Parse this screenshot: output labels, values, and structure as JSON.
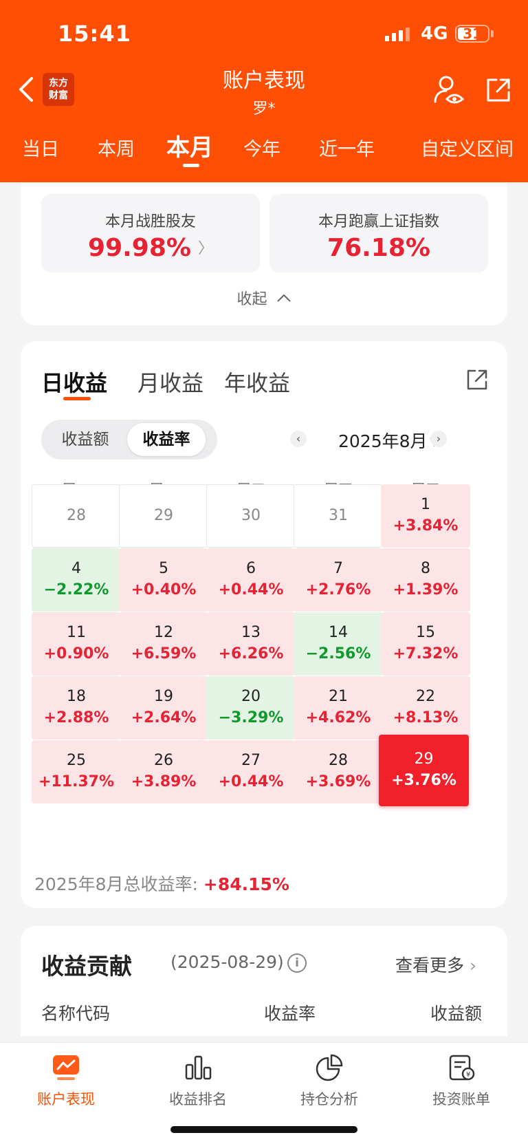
{
  "status_bar": {
    "time": "15:41",
    "network": "4G",
    "battery": "31"
  },
  "header": {
    "logo_line1": "东方",
    "logo_line2": "财富",
    "title": "账户表现",
    "subtitle": "罗*"
  },
  "period_tabs": [
    "当日",
    "本周",
    "本月",
    "今年",
    "近一年",
    "自定义区间"
  ],
  "active_period": "本月",
  "summary": {
    "beat_peers_label": "本月战胜股友",
    "beat_peers_value": "99.98%",
    "beat_index_label": "本月跑赢上证指数",
    "beat_index_value": "76.18%",
    "collapse_label": "收起"
  },
  "returns": {
    "tabs": [
      "日收益",
      "月收益",
      "年收益"
    ],
    "toggle": {
      "amount": "收益额",
      "rate": "收益率"
    },
    "month_label": "2025年8月",
    "weekdays": [
      "周一",
      "周二",
      "周三",
      "周四",
      "周五"
    ],
    "days": [
      {
        "day": "28",
        "pct": "",
        "type": "empty"
      },
      {
        "day": "29",
        "pct": "",
        "type": "empty"
      },
      {
        "day": "30",
        "pct": "",
        "type": "empty"
      },
      {
        "day": "31",
        "pct": "",
        "type": "empty"
      },
      {
        "day": "1",
        "pct": "+3.84%",
        "type": "up"
      },
      {
        "day": "4",
        "pct": "−2.22%",
        "type": "down"
      },
      {
        "day": "5",
        "pct": "+0.40%",
        "type": "up"
      },
      {
        "day": "6",
        "pct": "+0.44%",
        "type": "up"
      },
      {
        "day": "7",
        "pct": "+2.76%",
        "type": "up"
      },
      {
        "day": "8",
        "pct": "+1.39%",
        "type": "up"
      },
      {
        "day": "11",
        "pct": "+0.90%",
        "type": "up"
      },
      {
        "day": "12",
        "pct": "+6.59%",
        "type": "up"
      },
      {
        "day": "13",
        "pct": "+6.26%",
        "type": "up"
      },
      {
        "day": "14",
        "pct": "−2.56%",
        "type": "down"
      },
      {
        "day": "15",
        "pct": "+7.32%",
        "type": "up"
      },
      {
        "day": "18",
        "pct": "+2.88%",
        "type": "up"
      },
      {
        "day": "19",
        "pct": "+2.64%",
        "type": "up"
      },
      {
        "day": "20",
        "pct": "−3.29%",
        "type": "down"
      },
      {
        "day": "21",
        "pct": "+4.62%",
        "type": "up"
      },
      {
        "day": "22",
        "pct": "+8.13%",
        "type": "up"
      },
      {
        "day": "25",
        "pct": "+11.37%",
        "type": "up"
      },
      {
        "day": "26",
        "pct": "+3.89%",
        "type": "up"
      },
      {
        "day": "27",
        "pct": "+0.44%",
        "type": "up"
      },
      {
        "day": "28",
        "pct": "+3.69%",
        "type": "up"
      },
      {
        "day": "29",
        "pct": "+3.76%",
        "type": "sel"
      }
    ],
    "total_label": "2025年8月总收益率:",
    "total_value": "+84.15%"
  },
  "contribution": {
    "title": "收益贡献",
    "date": "(2025-08-29)",
    "more": "查看更多",
    "col_name": "名称代码",
    "col_rate": "收益率",
    "col_amount": "收益额"
  },
  "tabbar": [
    "账户表现",
    "收益排名",
    "持仓分析",
    "投资账单"
  ],
  "colors": {
    "brand": "#ff4f05",
    "up": "#e62233",
    "down": "#109a2d"
  }
}
